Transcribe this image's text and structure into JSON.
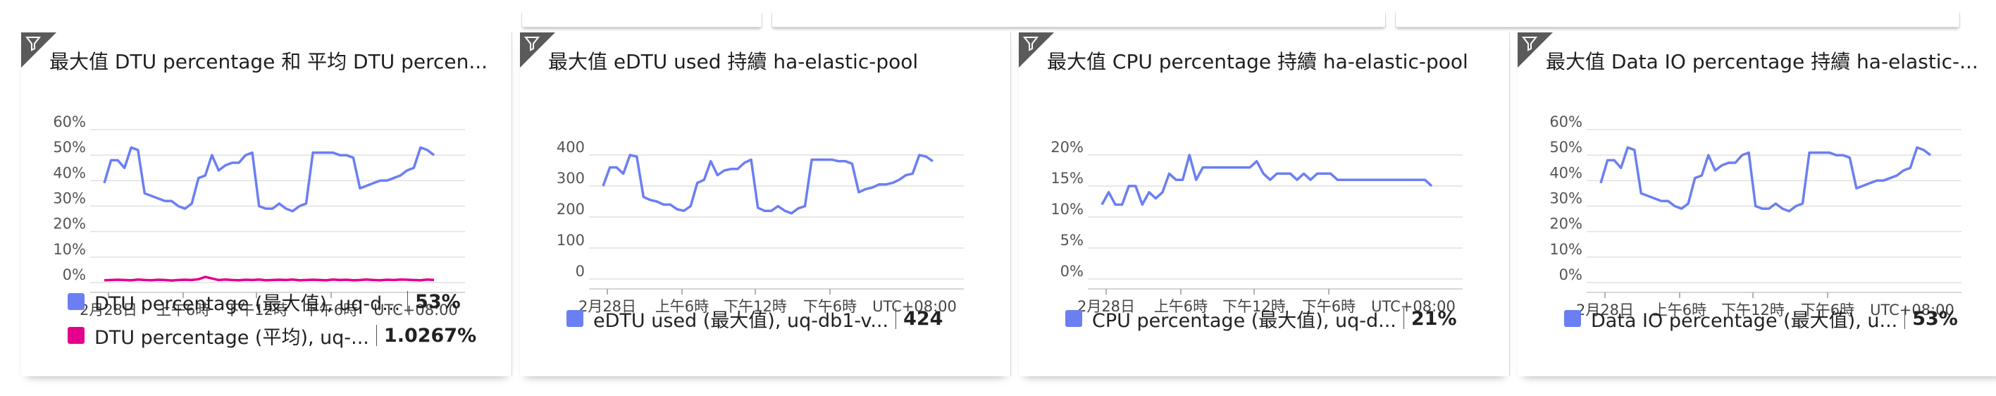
{
  "tiles": [
    {
      "title": "最大值 DTU percentage 和 平均 DTU percen...",
      "legend": [
        {
          "name": "DTU percentage (最大值), uq-d...",
          "value": "53%",
          "color": "#6b7ff2"
        },
        {
          "name": "DTU percentage (平均), uq-...",
          "value": "1.0267%",
          "color": "#e3008c"
        }
      ]
    },
    {
      "title": "最大值 eDTU used 持續 ha-elastic-pool",
      "legend": [
        {
          "name": "eDTU used (最大值), uq-db1-v...",
          "value": "424",
          "color": "#6b7ff2"
        }
      ]
    },
    {
      "title": "最大值 CPU percentage 持續 ha-elastic-pool",
      "legend": [
        {
          "name": "CPU percentage (最大值), uq-d...",
          "value": "21%",
          "color": "#6b7ff2"
        }
      ]
    },
    {
      "title": "最大值 Data IO percentage 持續 ha-elastic-...",
      "legend": [
        {
          "name": "Data IO percentage (最大值), u...",
          "value": "53%",
          "color": "#6b7ff2"
        }
      ]
    }
  ],
  "chart_data": [
    {
      "type": "line",
      "title": "最大值 DTU percentage 和 平均 DTU percen...",
      "xlabel": "",
      "ylabel": "",
      "x_ticks": [
        "2月28日",
        "上午6時",
        "下午12時",
        "下午6時",
        "UTC+08:00"
      ],
      "y_ticks": [
        "60%",
        "50%",
        "40%",
        "30%",
        "20%",
        "10%",
        "0%"
      ],
      "ylim": [
        0,
        60
      ],
      "series": [
        {
          "name": "DTU percentage (最大值), uq-d...",
          "color": "#6b7ff2",
          "values": [
            39,
            48,
            48,
            45,
            53,
            52,
            35,
            34,
            33,
            32,
            32,
            30,
            29,
            31,
            41,
            42,
            50,
            44,
            46,
            47,
            47,
            50,
            51,
            30,
            29,
            29,
            31,
            29,
            28,
            30,
            31,
            51,
            51,
            51,
            51,
            50,
            50,
            49,
            37,
            38,
            39,
            40,
            40,
            41,
            42,
            44,
            45,
            53,
            52,
            50
          ]
        },
        {
          "name": "DTU percentage (平均), uq-...",
          "color": "#e3008c",
          "values": [
            0.9,
            1.0,
            1.1,
            1.0,
            0.9,
            1.2,
            1.0,
            0.9,
            1.1,
            1.0,
            0.8,
            1.0,
            1.1,
            1.0,
            1.3,
            2.2,
            1.6,
            1.0,
            1.2,
            1.0,
            0.9,
            1.1,
            1.0,
            1.2,
            0.9,
            1.0,
            1.1,
            1.0,
            1.2,
            0.9,
            1.0,
            1.1,
            1.0,
            0.9,
            1.2,
            1.0,
            1.1,
            0.9,
            1.0,
            1.2,
            1.0,
            0.9,
            1.1,
            1.0,
            1.2,
            1.1,
            1.0,
            0.9,
            1.2,
            1.0
          ]
        }
      ]
    },
    {
      "type": "line",
      "title": "最大值 eDTU used 持續 ha-elastic-pool",
      "xlabel": "",
      "ylabel": "",
      "x_ticks": [
        "2月28日",
        "上午6時",
        "下午12時",
        "下午6時",
        "UTC+08:00"
      ],
      "y_ticks": [
        "400",
        "300",
        "200",
        "100",
        "0"
      ],
      "ylim": [
        0,
        400
      ],
      "series": [
        {
          "name": "eDTU used (最大值), uq-db1-v...",
          "color": "#6b7ff2",
          "values": [
            300,
            360,
            360,
            340,
            400,
            395,
            265,
            255,
            250,
            240,
            240,
            225,
            220,
            235,
            310,
            320,
            380,
            335,
            350,
            355,
            355,
            375,
            385,
            230,
            220,
            220,
            235,
            220,
            212,
            228,
            235,
            385,
            385,
            385,
            385,
            380,
            380,
            372,
            280,
            290,
            295,
            305,
            305,
            310,
            320,
            335,
            340,
            400,
            395,
            380
          ]
        }
      ]
    },
    {
      "type": "line",
      "title": "最大值 CPU percentage 持續 ha-elastic-pool",
      "xlabel": "",
      "ylabel": "",
      "x_ticks": [
        "2月28日",
        "上午6時",
        "下午12時",
        "下午6時",
        "UTC+08:00"
      ],
      "y_ticks": [
        "20%",
        "15%",
        "10%",
        "5%",
        "0%"
      ],
      "ylim": [
        0,
        20
      ],
      "series": [
        {
          "name": "CPU percentage (最大值), uq-d...",
          "color": "#6b7ff2",
          "values": [
            12,
            14,
            12,
            12,
            15,
            15,
            12,
            14,
            13,
            14,
            17,
            16,
            16,
            20,
            16,
            18,
            18,
            18,
            18,
            18,
            18,
            18,
            18,
            19,
            17,
            16,
            17,
            17,
            17,
            16,
            17,
            16,
            17,
            17,
            17,
            16,
            16,
            16,
            16,
            16,
            16,
            16,
            16,
            16,
            16,
            16,
            16,
            16,
            16,
            15
          ]
        }
      ]
    },
    {
      "type": "line",
      "title": "最大值 Data IO percentage 持續 ha-elastic-...",
      "xlabel": "",
      "ylabel": "",
      "x_ticks": [
        "2月28日",
        "上午6時",
        "下午12時",
        "下午6時",
        "UTC+08:00"
      ],
      "y_ticks": [
        "60%",
        "50%",
        "40%",
        "30%",
        "20%",
        "10%",
        "0%"
      ],
      "ylim": [
        0,
        60
      ],
      "series": [
        {
          "name": "Data IO percentage (最大值), u...",
          "color": "#6b7ff2",
          "values": [
            39,
            48,
            48,
            45,
            53,
            52,
            35,
            34,
            33,
            32,
            32,
            30,
            29,
            31,
            41,
            42,
            50,
            44,
            46,
            47,
            47,
            50,
            51,
            30,
            29,
            29,
            31,
            29,
            28,
            30,
            31,
            51,
            51,
            51,
            51,
            50,
            50,
            49,
            37,
            38,
            39,
            40,
            40,
            41,
            42,
            44,
            45,
            53,
            52,
            50
          ]
        }
      ]
    }
  ]
}
